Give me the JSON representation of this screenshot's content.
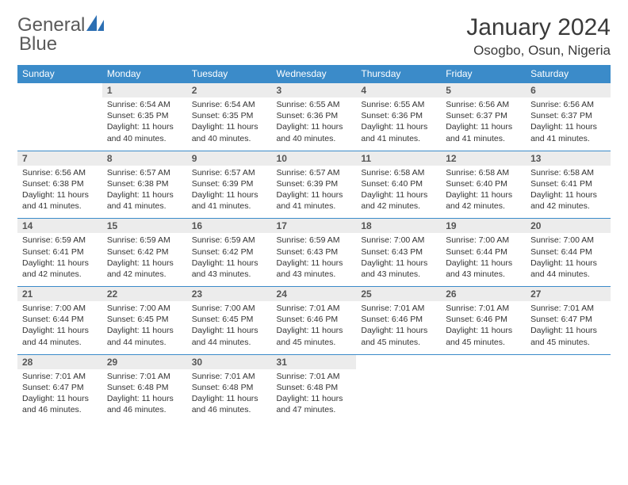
{
  "logo": {
    "text1": "General",
    "text2": "Blue",
    "color_gray": "#6a6a6a",
    "color_blue": "#2c6fb3"
  },
  "title": "January 2024",
  "location": "Osogbo, Osun, Nigeria",
  "header_bg": "#3b8bc9",
  "daynum_bg": "#ececec",
  "days_of_week": [
    "Sunday",
    "Monday",
    "Tuesday",
    "Wednesday",
    "Thursday",
    "Friday",
    "Saturday"
  ],
  "weeks": [
    [
      {
        "n": "",
        "sr": "",
        "ss": "",
        "dl": ""
      },
      {
        "n": "1",
        "sr": "Sunrise: 6:54 AM",
        "ss": "Sunset: 6:35 PM",
        "dl": "Daylight: 11 hours and 40 minutes."
      },
      {
        "n": "2",
        "sr": "Sunrise: 6:54 AM",
        "ss": "Sunset: 6:35 PM",
        "dl": "Daylight: 11 hours and 40 minutes."
      },
      {
        "n": "3",
        "sr": "Sunrise: 6:55 AM",
        "ss": "Sunset: 6:36 PM",
        "dl": "Daylight: 11 hours and 40 minutes."
      },
      {
        "n": "4",
        "sr": "Sunrise: 6:55 AM",
        "ss": "Sunset: 6:36 PM",
        "dl": "Daylight: 11 hours and 41 minutes."
      },
      {
        "n": "5",
        "sr": "Sunrise: 6:56 AM",
        "ss": "Sunset: 6:37 PM",
        "dl": "Daylight: 11 hours and 41 minutes."
      },
      {
        "n": "6",
        "sr": "Sunrise: 6:56 AM",
        "ss": "Sunset: 6:37 PM",
        "dl": "Daylight: 11 hours and 41 minutes."
      }
    ],
    [
      {
        "n": "7",
        "sr": "Sunrise: 6:56 AM",
        "ss": "Sunset: 6:38 PM",
        "dl": "Daylight: 11 hours and 41 minutes."
      },
      {
        "n": "8",
        "sr": "Sunrise: 6:57 AM",
        "ss": "Sunset: 6:38 PM",
        "dl": "Daylight: 11 hours and 41 minutes."
      },
      {
        "n": "9",
        "sr": "Sunrise: 6:57 AM",
        "ss": "Sunset: 6:39 PM",
        "dl": "Daylight: 11 hours and 41 minutes."
      },
      {
        "n": "10",
        "sr": "Sunrise: 6:57 AM",
        "ss": "Sunset: 6:39 PM",
        "dl": "Daylight: 11 hours and 41 minutes."
      },
      {
        "n": "11",
        "sr": "Sunrise: 6:58 AM",
        "ss": "Sunset: 6:40 PM",
        "dl": "Daylight: 11 hours and 42 minutes."
      },
      {
        "n": "12",
        "sr": "Sunrise: 6:58 AM",
        "ss": "Sunset: 6:40 PM",
        "dl": "Daylight: 11 hours and 42 minutes."
      },
      {
        "n": "13",
        "sr": "Sunrise: 6:58 AM",
        "ss": "Sunset: 6:41 PM",
        "dl": "Daylight: 11 hours and 42 minutes."
      }
    ],
    [
      {
        "n": "14",
        "sr": "Sunrise: 6:59 AM",
        "ss": "Sunset: 6:41 PM",
        "dl": "Daylight: 11 hours and 42 minutes."
      },
      {
        "n": "15",
        "sr": "Sunrise: 6:59 AM",
        "ss": "Sunset: 6:42 PM",
        "dl": "Daylight: 11 hours and 42 minutes."
      },
      {
        "n": "16",
        "sr": "Sunrise: 6:59 AM",
        "ss": "Sunset: 6:42 PM",
        "dl": "Daylight: 11 hours and 43 minutes."
      },
      {
        "n": "17",
        "sr": "Sunrise: 6:59 AM",
        "ss": "Sunset: 6:43 PM",
        "dl": "Daylight: 11 hours and 43 minutes."
      },
      {
        "n": "18",
        "sr": "Sunrise: 7:00 AM",
        "ss": "Sunset: 6:43 PM",
        "dl": "Daylight: 11 hours and 43 minutes."
      },
      {
        "n": "19",
        "sr": "Sunrise: 7:00 AM",
        "ss": "Sunset: 6:44 PM",
        "dl": "Daylight: 11 hours and 43 minutes."
      },
      {
        "n": "20",
        "sr": "Sunrise: 7:00 AM",
        "ss": "Sunset: 6:44 PM",
        "dl": "Daylight: 11 hours and 44 minutes."
      }
    ],
    [
      {
        "n": "21",
        "sr": "Sunrise: 7:00 AM",
        "ss": "Sunset: 6:44 PM",
        "dl": "Daylight: 11 hours and 44 minutes."
      },
      {
        "n": "22",
        "sr": "Sunrise: 7:00 AM",
        "ss": "Sunset: 6:45 PM",
        "dl": "Daylight: 11 hours and 44 minutes."
      },
      {
        "n": "23",
        "sr": "Sunrise: 7:00 AM",
        "ss": "Sunset: 6:45 PM",
        "dl": "Daylight: 11 hours and 44 minutes."
      },
      {
        "n": "24",
        "sr": "Sunrise: 7:01 AM",
        "ss": "Sunset: 6:46 PM",
        "dl": "Daylight: 11 hours and 45 minutes."
      },
      {
        "n": "25",
        "sr": "Sunrise: 7:01 AM",
        "ss": "Sunset: 6:46 PM",
        "dl": "Daylight: 11 hours and 45 minutes."
      },
      {
        "n": "26",
        "sr": "Sunrise: 7:01 AM",
        "ss": "Sunset: 6:46 PM",
        "dl": "Daylight: 11 hours and 45 minutes."
      },
      {
        "n": "27",
        "sr": "Sunrise: 7:01 AM",
        "ss": "Sunset: 6:47 PM",
        "dl": "Daylight: 11 hours and 45 minutes."
      }
    ],
    [
      {
        "n": "28",
        "sr": "Sunrise: 7:01 AM",
        "ss": "Sunset: 6:47 PM",
        "dl": "Daylight: 11 hours and 46 minutes."
      },
      {
        "n": "29",
        "sr": "Sunrise: 7:01 AM",
        "ss": "Sunset: 6:48 PM",
        "dl": "Daylight: 11 hours and 46 minutes."
      },
      {
        "n": "30",
        "sr": "Sunrise: 7:01 AM",
        "ss": "Sunset: 6:48 PM",
        "dl": "Daylight: 11 hours and 46 minutes."
      },
      {
        "n": "31",
        "sr": "Sunrise: 7:01 AM",
        "ss": "Sunset: 6:48 PM",
        "dl": "Daylight: 11 hours and 47 minutes."
      },
      {
        "n": "",
        "sr": "",
        "ss": "",
        "dl": ""
      },
      {
        "n": "",
        "sr": "",
        "ss": "",
        "dl": ""
      },
      {
        "n": "",
        "sr": "",
        "ss": "",
        "dl": ""
      }
    ]
  ]
}
